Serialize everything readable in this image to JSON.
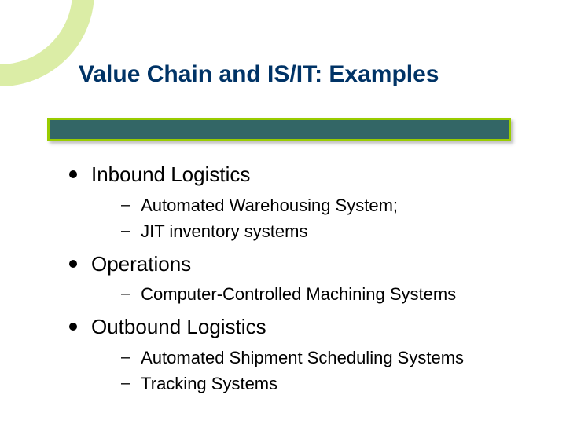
{
  "slide": {
    "title": "Value Chain and IS/IT: Examples",
    "colors": {
      "title_text": "#003366",
      "accent_bar_fill": "#336666",
      "accent_bar_border": "#99cc00",
      "corner_arc": "#99cc00",
      "body_text": "#000000",
      "background": "#ffffff"
    },
    "typography": {
      "title_fontsize_pt": 30,
      "title_weight": "bold",
      "lvl1_fontsize_pt": 26,
      "lvl2_fontsize_pt": 22,
      "font_family": "Arial"
    },
    "sections": [
      {
        "heading": "Inbound Logistics",
        "items": [
          " Automated Warehousing System;",
          "JIT inventory systems"
        ]
      },
      {
        "heading": "Operations",
        "items": [
          "Computer-Controlled Machining Systems"
        ]
      },
      {
        "heading": "Outbound Logistics",
        "items": [
          "Automated Shipment Scheduling Systems",
          "Tracking Systems"
        ]
      }
    ]
  }
}
